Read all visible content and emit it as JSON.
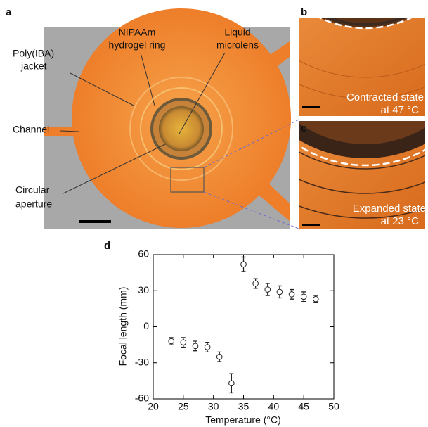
{
  "panels": {
    "a": {
      "letter": "a",
      "labels": [
        [
          "NIPAAm",
          "hydrogel ring"
        ],
        [
          "Liquid",
          "microlens"
        ],
        [
          "Poly(IBA)",
          "jacket"
        ],
        [
          "Channel"
        ],
        [
          "Circular",
          "aperture"
        ]
      ]
    },
    "b": {
      "letter": "b",
      "caption": [
        "Contracted state",
        "at 47 °C"
      ]
    },
    "c": {
      "letter": "c",
      "caption": [
        "Expanded state",
        "at 23 °C"
      ]
    },
    "d": {
      "letter": "d"
    }
  },
  "chart_data": {
    "type": "scatter",
    "x_label": "Temperature (°C)",
    "y_label": "Focal length (mm)",
    "x": [
      23,
      25,
      27,
      29,
      31,
      33,
      35,
      37,
      39,
      41,
      43,
      45,
      47
    ],
    "values": [
      -12,
      -13,
      -16,
      -17,
      -25,
      -47,
      52,
      36,
      31,
      29,
      27,
      25,
      23
    ],
    "errors": [
      3,
      4,
      4,
      4,
      4,
      8,
      6,
      4,
      5,
      5,
      4,
      4,
      3
    ],
    "xlim": [
      20,
      50
    ],
    "xticks": [
      20,
      25,
      30,
      35,
      40,
      45,
      50
    ],
    "ylim": [
      -60,
      60
    ],
    "yticks": [
      -60,
      -30,
      0,
      30,
      60
    ],
    "color": "#222222"
  }
}
